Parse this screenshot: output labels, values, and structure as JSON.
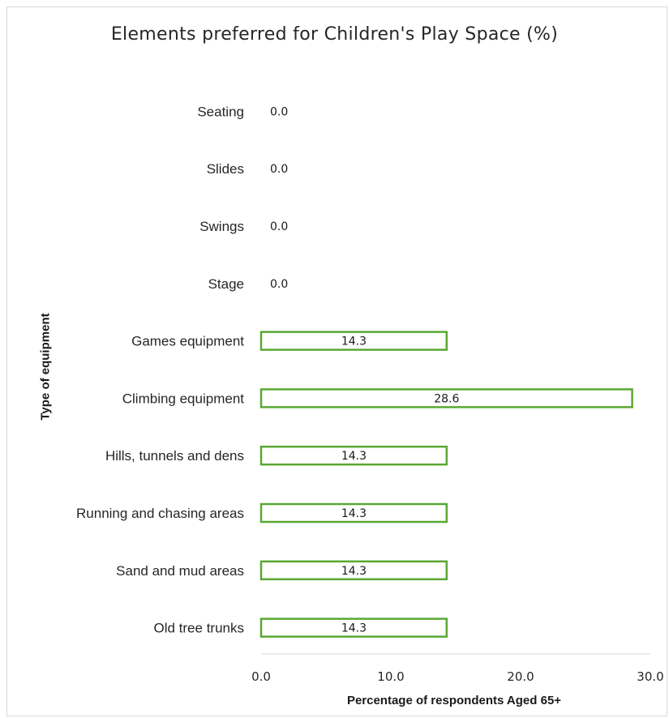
{
  "chart_data": {
    "type": "bar",
    "orientation": "horizontal",
    "title": "Elements preferred for Children's Play Space (%)",
    "xlabel": "Percentage of respondents Aged 65+",
    "ylabel": "Type of equipment",
    "categories": [
      "Seating",
      "Slides",
      "Swings",
      "Stage",
      "Games equipment",
      "Climbing equipment",
      "Hills, tunnels and dens",
      "Running and chasing areas",
      "Sand and mud areas",
      "Old tree trunks"
    ],
    "values": [
      0.0,
      0.0,
      0.0,
      0.0,
      14.3,
      28.6,
      14.3,
      14.3,
      14.3,
      14.3
    ],
    "data_labels": [
      "0.0",
      "0.0",
      "0.0",
      "0.0",
      "14.3",
      "28.6",
      "14.3",
      "14.3",
      "14.3",
      "14.3"
    ],
    "xlim": [
      0,
      30
    ],
    "x_ticks": [
      "0.0",
      "10.0",
      "20.0",
      "30.0"
    ],
    "grid": false,
    "legend": "none",
    "bar_fill": "#ffffff",
    "bar_outline": "#5aa832"
  }
}
